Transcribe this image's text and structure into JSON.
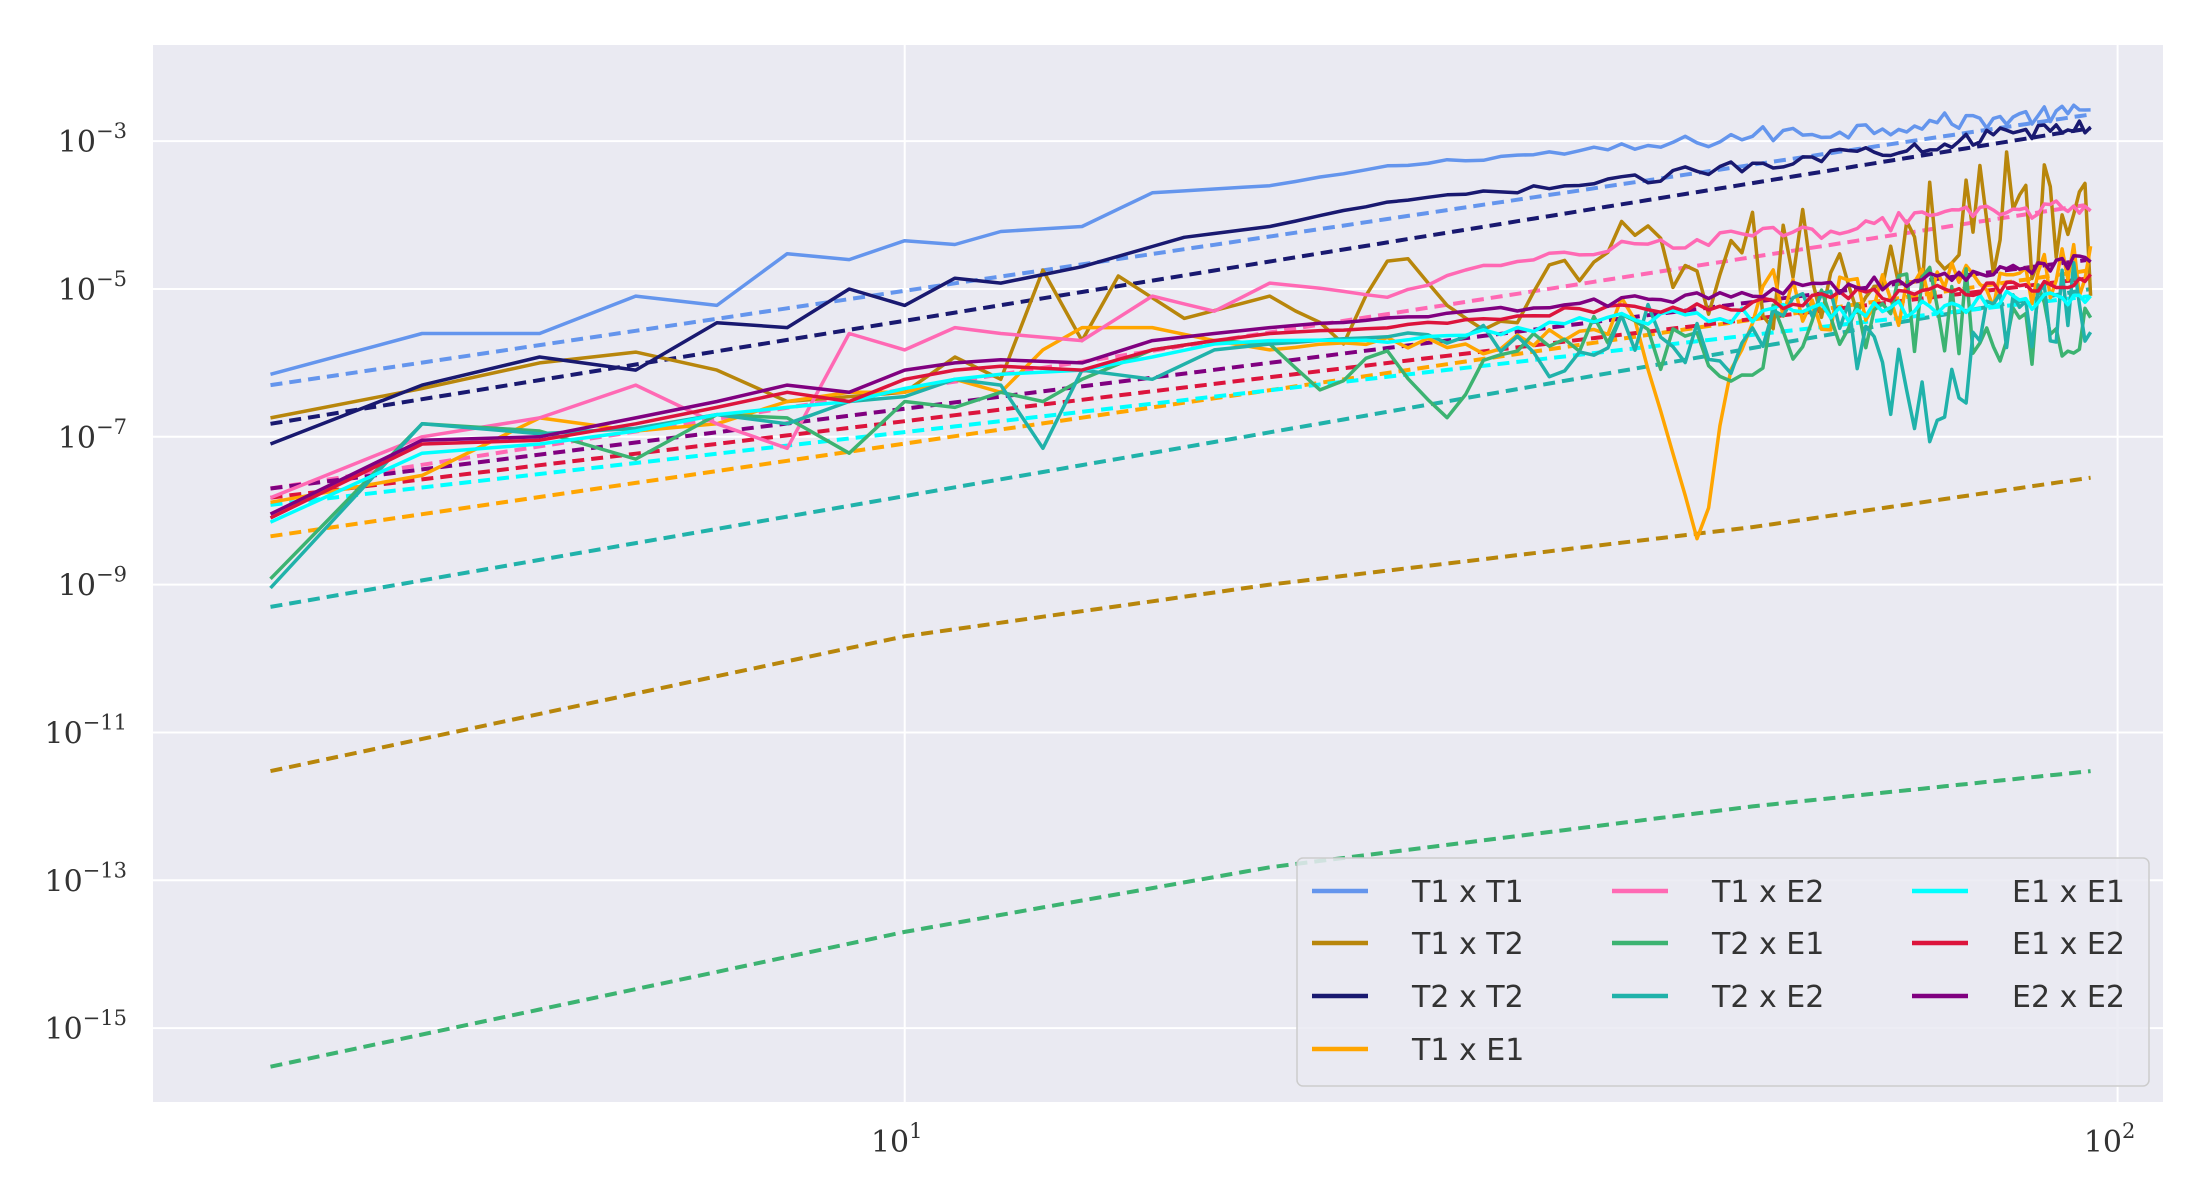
{
  "chart_data": {
    "type": "line",
    "x_scale": "log",
    "y_scale": "log",
    "xlim": [
      2.4,
      109
    ],
    "ylim": [
      1e-16,
      0.02
    ],
    "x_ticks": [
      {
        "value": 10,
        "base": "10",
        "exp": "1"
      },
      {
        "value": 100,
        "base": "10",
        "exp": "2"
      }
    ],
    "y_ticks": [
      {
        "value": 0.001,
        "base": "10",
        "exp": "−3"
      },
      {
        "value": 1e-05,
        "base": "10",
        "exp": "−5"
      },
      {
        "value": 1e-07,
        "base": "10",
        "exp": "−7"
      },
      {
        "value": 1e-09,
        "base": "10",
        "exp": "−9"
      },
      {
        "value": 1e-11,
        "base": "10",
        "exp": "−11"
      },
      {
        "value": 1e-13,
        "base": "10",
        "exp": "−13"
      },
      {
        "value": 1e-15,
        "base": "10",
        "exp": "−15"
      }
    ],
    "grid": true,
    "legend_position": "bottom-right",
    "legend_columns": 3,
    "x_range": [
      3,
      95
    ],
    "series": [
      {
        "name": "T1 x T1",
        "color": "#6495ED",
        "solid": [
          [
            3,
            7e-07
          ],
          [
            4,
            2.5e-06
          ],
          [
            5,
            2.5e-06
          ],
          [
            6,
            8e-06
          ],
          [
            7,
            6e-06
          ],
          [
            8,
            3e-05
          ],
          [
            9,
            2.5e-05
          ],
          [
            10,
            4.5e-05
          ],
          [
            11,
            4e-05
          ],
          [
            12,
            6e-05
          ],
          [
            14,
            7e-05
          ],
          [
            16,
            0.0002
          ],
          [
            20,
            0.00025
          ],
          [
            25,
            0.00045
          ],
          [
            30,
            0.0006
          ],
          [
            40,
            0.0008
          ],
          [
            50,
            0.0012
          ],
          [
            60,
            0.0014
          ],
          [
            70,
            0.0018
          ],
          [
            80,
            0.002
          ],
          [
            95,
            0.0025
          ]
        ],
        "fit": [
          [
            3,
            5e-07
          ],
          [
            95,
            0.0023
          ]
        ],
        "noise": 0.12
      },
      {
        "name": "T1 x T2",
        "color": "#B8860B",
        "solid": [
          [
            3,
            1.8e-07
          ],
          [
            4,
            4.5e-07
          ],
          [
            5,
            1e-06
          ],
          [
            6,
            1.4e-06
          ],
          [
            7,
            8e-07
          ],
          [
            8,
            3e-07
          ],
          [
            9,
            3.5e-07
          ],
          [
            10,
            4e-07
          ],
          [
            11,
            1.2e-06
          ],
          [
            12,
            6e-07
          ],
          [
            13,
            1.8e-05
          ],
          [
            14,
            2e-06
          ],
          [
            15,
            1.5e-05
          ],
          [
            17,
            4e-06
          ],
          [
            20,
            8e-06
          ],
          [
            23,
            2e-06
          ],
          [
            25,
            3e-05
          ],
          [
            30,
            3e-06
          ],
          [
            40,
            3e-05
          ],
          [
            50,
            1.5e-05
          ],
          [
            60,
            2e-05
          ],
          [
            70,
            6e-05
          ],
          [
            80,
            0.0001
          ],
          [
            95,
            6e-05
          ]
        ],
        "fit": [
          [
            3,
            3e-12
          ],
          [
            10,
            2e-10
          ],
          [
            20,
            1e-09
          ],
          [
            50,
            6e-09
          ],
          [
            95,
            2.8e-08
          ]
        ],
        "noise": 0.9
      },
      {
        "name": "T2 x T2",
        "color": "#191970",
        "solid": [
          [
            3,
            8e-08
          ],
          [
            4,
            5e-07
          ],
          [
            5,
            1.2e-06
          ],
          [
            6,
            8e-07
          ],
          [
            7,
            3.5e-06
          ],
          [
            8,
            3e-06
          ],
          [
            9,
            1e-05
          ],
          [
            10,
            6e-06
          ],
          [
            11,
            1.4e-05
          ],
          [
            12,
            1.2e-05
          ],
          [
            14,
            2e-05
          ],
          [
            17,
            5e-05
          ],
          [
            20,
            7e-05
          ],
          [
            25,
            0.00015
          ],
          [
            30,
            0.0002
          ],
          [
            40,
            0.0003
          ],
          [
            50,
            0.0005
          ],
          [
            60,
            0.0007
          ],
          [
            70,
            0.0009
          ],
          [
            80,
            0.0012
          ],
          [
            95,
            0.0016
          ]
        ],
        "fit": [
          [
            3,
            1.5e-07
          ],
          [
            95,
            0.0015
          ]
        ],
        "noise": 0.1
      },
      {
        "name": "T1 x E1",
        "color": "#FFA500",
        "solid": [
          [
            3,
            1.3e-08
          ],
          [
            4,
            3e-08
          ],
          [
            5,
            1.8e-07
          ],
          [
            6,
            1.2e-07
          ],
          [
            7,
            1.5e-07
          ],
          [
            8,
            3e-07
          ],
          [
            9,
            4e-07
          ],
          [
            10,
            4e-07
          ],
          [
            11,
            6e-07
          ],
          [
            12,
            4e-07
          ],
          [
            13,
            1.5e-06
          ],
          [
            14,
            3e-06
          ],
          [
            16,
            3e-06
          ],
          [
            18,
            2e-06
          ],
          [
            20,
            1.5e-06
          ],
          [
            25,
            2e-06
          ],
          [
            30,
            1.5e-06
          ],
          [
            35,
            3e-06
          ],
          [
            40,
            5e-06
          ],
          [
            45,
            4e-09
          ],
          [
            50,
            8e-06
          ],
          [
            60,
            6e-06
          ],
          [
            70,
            8e-06
          ],
          [
            80,
            1.2e-05
          ],
          [
            95,
            2e-05
          ]
        ],
        "fit": [
          [
            3,
            4.5e-09
          ],
          [
            95,
            1.8e-05
          ]
        ],
        "noise": 0.4
      },
      {
        "name": "T1 x E2",
        "color": "#FF69B4",
        "solid": [
          [
            3,
            1.5e-08
          ],
          [
            4,
            1e-07
          ],
          [
            5,
            1.8e-07
          ],
          [
            6,
            5e-07
          ],
          [
            7,
            1.5e-07
          ],
          [
            8,
            7e-08
          ],
          [
            9,
            2.5e-06
          ],
          [
            10,
            1.5e-06
          ],
          [
            11,
            3e-06
          ],
          [
            12,
            2.5e-06
          ],
          [
            14,
            2e-06
          ],
          [
            16,
            8e-06
          ],
          [
            18,
            5e-06
          ],
          [
            20,
            1.2e-05
          ],
          [
            25,
            8e-06
          ],
          [
            30,
            2e-05
          ],
          [
            35,
            3e-05
          ],
          [
            40,
            4e-05
          ],
          [
            50,
            5e-05
          ],
          [
            60,
            7e-05
          ],
          [
            70,
            9e-05
          ],
          [
            80,
            0.00011
          ],
          [
            95,
            0.00013
          ]
        ],
        "fit": [
          [
            3,
            2e-08
          ],
          [
            95,
            0.00014
          ]
        ],
        "noise": 0.12
      },
      {
        "name": "T2 x E1",
        "color": "#3CB371",
        "solid": [
          [
            3,
            1.2e-09
          ],
          [
            4,
            1.5e-07
          ],
          [
            5,
            1.2e-07
          ],
          [
            6,
            5e-08
          ],
          [
            7,
            2e-07
          ],
          [
            8,
            1.8e-07
          ],
          [
            9,
            6e-08
          ],
          [
            10,
            3e-07
          ],
          [
            11,
            2.5e-07
          ],
          [
            12,
            4e-07
          ],
          [
            13,
            3e-07
          ],
          [
            14,
            6e-07
          ],
          [
            16,
            1.5e-06
          ],
          [
            18,
            2e-06
          ],
          [
            20,
            1.8e-06
          ],
          [
            22,
            4e-07
          ],
          [
            25,
            1.5e-06
          ],
          [
            28,
            1.8e-07
          ],
          [
            30,
            1.5e-06
          ],
          [
            35,
            3e-06
          ],
          [
            40,
            2e-06
          ],
          [
            50,
            2e-06
          ],
          [
            60,
            3e-06
          ],
          [
            70,
            6e-06
          ],
          [
            80,
            4e-06
          ],
          [
            95,
            2.5e-06
          ]
        ],
        "fit": [
          [
            3,
            3e-16
          ],
          [
            10,
            2e-14
          ],
          [
            20,
            1.5e-13
          ],
          [
            50,
            1e-12
          ],
          [
            95,
            3e-12
          ]
        ],
        "noise": 0.6
      },
      {
        "name": "T2 x E2",
        "color": "#20B2AA",
        "solid": [
          [
            3,
            9e-10
          ],
          [
            4,
            1.5e-07
          ],
          [
            5,
            1.1e-07
          ],
          [
            6,
            1.3e-07
          ],
          [
            7,
            2e-07
          ],
          [
            8,
            1.5e-07
          ],
          [
            9,
            3e-07
          ],
          [
            10,
            3.5e-07
          ],
          [
            11,
            6e-07
          ],
          [
            12,
            5e-07
          ],
          [
            13,
            7e-08
          ],
          [
            14,
            8e-07
          ],
          [
            16,
            6e-07
          ],
          [
            18,
            1.5e-06
          ],
          [
            20,
            1.8e-06
          ],
          [
            25,
            2e-06
          ],
          [
            30,
            3e-06
          ],
          [
            35,
            5e-07
          ],
          [
            40,
            3e-06
          ],
          [
            50,
            2e-06
          ],
          [
            60,
            3e-06
          ],
          [
            70,
            2e-07
          ],
          [
            80,
            5e-06
          ],
          [
            95,
            8e-06
          ]
        ],
        "fit": [
          [
            3,
            5e-10
          ],
          [
            95,
            1e-05
          ]
        ],
        "noise": 0.6
      },
      {
        "name": "E1 x E1",
        "color": "#00FFFF",
        "solid": [
          [
            3,
            7e-09
          ],
          [
            4,
            6e-08
          ],
          [
            5,
            8e-08
          ],
          [
            6,
            1.2e-07
          ],
          [
            7,
            2e-07
          ],
          [
            8,
            2.5e-07
          ],
          [
            9,
            3e-07
          ],
          [
            10,
            4.5e-07
          ],
          [
            11,
            6e-07
          ],
          [
            12,
            7e-07
          ],
          [
            14,
            8e-07
          ],
          [
            16,
            1.2e-06
          ],
          [
            18,
            1.8e-06
          ],
          [
            20,
            2e-06
          ],
          [
            25,
            2e-06
          ],
          [
            30,
            2.5e-06
          ],
          [
            35,
            3.5e-06
          ],
          [
            40,
            4e-06
          ],
          [
            50,
            4.5e-06
          ],
          [
            60,
            5e-06
          ],
          [
            70,
            6e-06
          ],
          [
            80,
            7e-06
          ],
          [
            95,
            8e-06
          ]
        ],
        "fit": [
          [
            3,
            1.2e-08
          ],
          [
            95,
            8e-06
          ]
        ],
        "noise": 0.15
      },
      {
        "name": "E1 x E2",
        "color": "#DC143C",
        "solid": [
          [
            3,
            8e-09
          ],
          [
            4,
            8e-08
          ],
          [
            5,
            9e-08
          ],
          [
            6,
            1.5e-07
          ],
          [
            7,
            2.5e-07
          ],
          [
            8,
            4e-07
          ],
          [
            9,
            3e-07
          ],
          [
            10,
            6e-07
          ],
          [
            11,
            8e-07
          ],
          [
            12,
            9e-07
          ],
          [
            14,
            8e-07
          ],
          [
            16,
            1.5e-06
          ],
          [
            18,
            2e-06
          ],
          [
            20,
            2.5e-06
          ],
          [
            25,
            3e-06
          ],
          [
            30,
            4e-06
          ],
          [
            35,
            5e-06
          ],
          [
            40,
            5.5e-06
          ],
          [
            50,
            6e-06
          ],
          [
            60,
            8e-06
          ],
          [
            70,
            9e-06
          ],
          [
            80,
            1.1e-05
          ],
          [
            95,
            1.3e-05
          ]
        ],
        "fit": [
          [
            3,
            1.5e-08
          ],
          [
            95,
            1.4e-05
          ]
        ],
        "noise": 0.1
      },
      {
        "name": "E2 x E2",
        "color": "#800080",
        "solid": [
          [
            3,
            9e-09
          ],
          [
            4,
            9e-08
          ],
          [
            5,
            1e-07
          ],
          [
            6,
            1.8e-07
          ],
          [
            7,
            3e-07
          ],
          [
            8,
            5e-07
          ],
          [
            9,
            4e-07
          ],
          [
            10,
            8e-07
          ],
          [
            11,
            1e-06
          ],
          [
            12,
            1.1e-06
          ],
          [
            14,
            1e-06
          ],
          [
            16,
            2e-06
          ],
          [
            18,
            2.5e-06
          ],
          [
            20,
            3e-06
          ],
          [
            25,
            4e-06
          ],
          [
            30,
            5e-06
          ],
          [
            35,
            6e-06
          ],
          [
            40,
            7e-06
          ],
          [
            50,
            9e-06
          ],
          [
            60,
            1.1e-05
          ],
          [
            70,
            1.3e-05
          ],
          [
            80,
            1.8e-05
          ],
          [
            95,
            2.5e-05
          ]
        ],
        "fit": [
          [
            3,
            2e-08
          ],
          [
            95,
            2.5e-05
          ]
        ],
        "noise": 0.1
      }
    ]
  }
}
